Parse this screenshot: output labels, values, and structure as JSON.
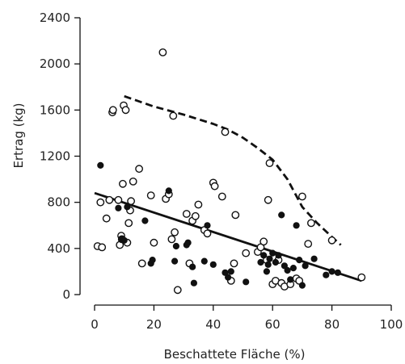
{
  "chart_data": {
    "type": "scatter",
    "xlabel": "Beschattete Fläche (%)",
    "ylabel": "Ertrag (kg)",
    "xlim": [
      0,
      100
    ],
    "ylim": [
      0,
      2400
    ],
    "x_ticks": [
      "0",
      "20",
      "40",
      "60",
      "80",
      "100"
    ],
    "y_ticks": [
      "0",
      "400",
      "800",
      "1200",
      "1600",
      "2000",
      "2400"
    ],
    "grid": false,
    "legend": "none",
    "colors": {
      "ink": "#111111",
      "background": "#ffffff"
    },
    "series": [
      {
        "marker": "open-circle",
        "points": [
          [
            1,
            420
          ],
          [
            2,
            800
          ],
          [
            2.5,
            410
          ],
          [
            4,
            660
          ],
          [
            5,
            820
          ],
          [
            6,
            1580
          ],
          [
            6.2,
            1600
          ],
          [
            8,
            820
          ],
          [
            8.5,
            430
          ],
          [
            9,
            510
          ],
          [
            9.2,
            480
          ],
          [
            9.5,
            960
          ],
          [
            9.8,
            1640
          ],
          [
            10.5,
            1600
          ],
          [
            11,
            450
          ],
          [
            11.5,
            620
          ],
          [
            12,
            730
          ],
          [
            12.3,
            810
          ],
          [
            13,
            980
          ],
          [
            15,
            1090
          ],
          [
            16,
            270
          ],
          [
            19,
            860
          ],
          [
            20,
            450
          ],
          [
            23,
            2100
          ],
          [
            24,
            830
          ],
          [
            25,
            870
          ],
          [
            26,
            480
          ],
          [
            26.5,
            1550
          ],
          [
            27,
            540
          ],
          [
            28,
            40
          ],
          [
            31,
            700
          ],
          [
            32,
            270
          ],
          [
            33,
            640
          ],
          [
            34,
            680
          ],
          [
            35,
            780
          ],
          [
            37,
            560
          ],
          [
            38,
            530
          ],
          [
            40,
            970
          ],
          [
            40.5,
            940
          ],
          [
            43,
            850
          ],
          [
            44,
            1410
          ],
          [
            46,
            120
          ],
          [
            47,
            270
          ],
          [
            47.5,
            690
          ],
          [
            51,
            360
          ],
          [
            55,
            370
          ],
          [
            56,
            410
          ],
          [
            57,
            460
          ],
          [
            58,
            300
          ],
          [
            58.5,
            820
          ],
          [
            59,
            1140
          ],
          [
            60,
            90
          ],
          [
            61,
            120
          ],
          [
            62,
            300
          ],
          [
            63,
            100
          ],
          [
            64,
            70
          ],
          [
            66,
            90
          ],
          [
            68,
            140
          ],
          [
            69,
            120
          ],
          [
            70,
            850
          ],
          [
            72,
            440
          ],
          [
            73,
            620
          ],
          [
            80,
            470
          ],
          [
            90,
            150
          ]
        ]
      },
      {
        "marker": "filled-circle",
        "points": [
          [
            2,
            1120
          ],
          [
            8,
            750
          ],
          [
            9,
            480
          ],
          [
            10,
            470
          ],
          [
            11,
            760
          ],
          [
            17,
            640
          ],
          [
            19,
            270
          ],
          [
            19.5,
            300
          ],
          [
            25,
            900
          ],
          [
            27,
            290
          ],
          [
            27.5,
            420
          ],
          [
            31,
            430
          ],
          [
            31.5,
            450
          ],
          [
            33,
            240
          ],
          [
            33.5,
            100
          ],
          [
            37,
            290
          ],
          [
            38,
            600
          ],
          [
            40,
            260
          ],
          [
            44,
            190
          ],
          [
            45,
            150
          ],
          [
            46,
            200
          ],
          [
            51,
            110
          ],
          [
            56,
            280
          ],
          [
            57,
            340
          ],
          [
            58,
            200
          ],
          [
            58.5,
            260
          ],
          [
            59,
            310
          ],
          [
            60,
            360
          ],
          [
            61,
            280
          ],
          [
            62,
            340
          ],
          [
            63,
            690
          ],
          [
            64,
            250
          ],
          [
            65,
            210
          ],
          [
            66,
            130
          ],
          [
            67,
            230
          ],
          [
            68,
            600
          ],
          [
            69,
            300
          ],
          [
            70,
            80
          ],
          [
            71,
            250
          ],
          [
            74,
            310
          ],
          [
            78,
            170
          ],
          [
            80,
            200
          ],
          [
            82,
            190
          ]
        ]
      },
      {
        "marker": "solid-line",
        "points": [
          [
            0,
            880
          ],
          [
            90,
            120
          ]
        ]
      },
      {
        "marker": "dashed-line",
        "points": [
          [
            10,
            1720
          ],
          [
            20,
            1630
          ],
          [
            30,
            1560
          ],
          [
            40,
            1480
          ],
          [
            45,
            1430
          ],
          [
            50,
            1360
          ],
          [
            55,
            1270
          ],
          [
            60,
            1170
          ],
          [
            65,
            1000
          ],
          [
            70,
            760
          ],
          [
            75,
            620
          ],
          [
            80,
            500
          ],
          [
            83,
            430
          ]
        ]
      }
    ]
  }
}
